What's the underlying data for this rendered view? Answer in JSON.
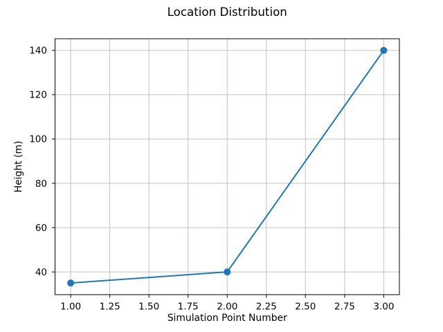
{
  "chart_data": {
    "type": "line",
    "title": "Location Distribution",
    "xlabel": "Simulation Point Number",
    "ylabel": "Height (m)",
    "x": [
      1,
      2,
      3
    ],
    "y": [
      35,
      40,
      140
    ],
    "xlim": [
      0.9,
      3.1
    ],
    "ylim": [
      29.75,
      145.25
    ],
    "xticks": [
      1.0,
      1.25,
      1.5,
      1.75,
      2.0,
      2.25,
      2.5,
      2.75,
      3.0
    ],
    "xtick_labels": [
      "1.00",
      "1.25",
      "1.50",
      "1.75",
      "2.00",
      "2.25",
      "2.50",
      "2.75",
      "3.00"
    ],
    "yticks": [
      40,
      60,
      80,
      100,
      120,
      140
    ],
    "ytick_labels": [
      "40",
      "60",
      "80",
      "100",
      "120",
      "140"
    ],
    "grid": true,
    "legend": false,
    "marker": "circle",
    "colors": {
      "line": "#1f77b4",
      "marker": "#1f77b4",
      "grid": "#c0c0c0",
      "spine": "#000000",
      "text": "#000000",
      "background": "#ffffff"
    }
  }
}
